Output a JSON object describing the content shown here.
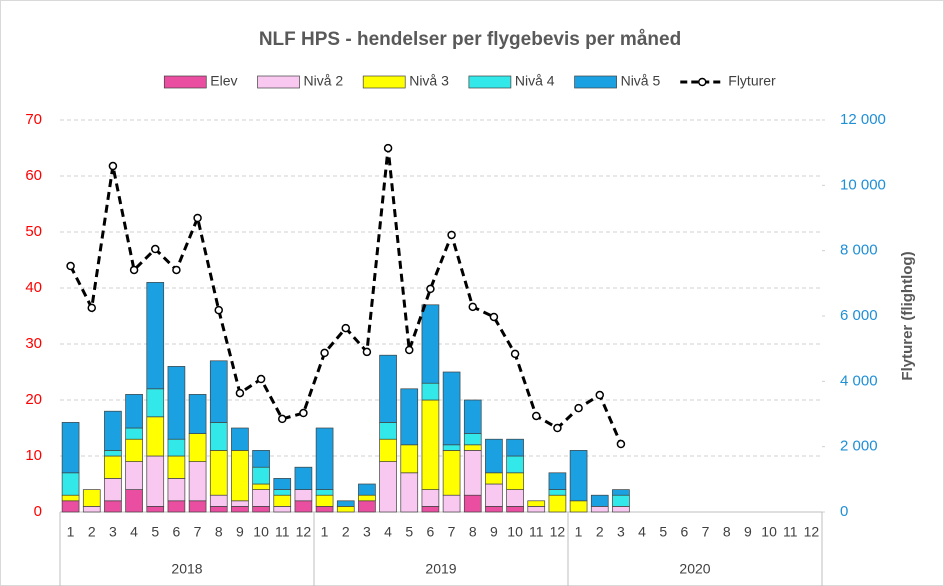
{
  "chart_data": {
    "type": "bar",
    "title": "NLF HPS - hendelser per flygebevis per måned",
    "y2_label": "Flyturer (flightlog)",
    "categories": [
      "1",
      "2",
      "3",
      "4",
      "5",
      "6",
      "7",
      "8",
      "9",
      "10",
      "11",
      "12",
      "1",
      "2",
      "3",
      "4",
      "5",
      "6",
      "7",
      "8",
      "9",
      "10",
      "11",
      "12",
      "1",
      "2",
      "3",
      "4",
      "5",
      "6",
      "7",
      "8",
      "9",
      "10",
      "11",
      "12"
    ],
    "year_groups": [
      "2018",
      "2019",
      "2020"
    ],
    "stacked": true,
    "grid": true,
    "legend": "top",
    "ylim": [
      0,
      70
    ],
    "yticks": [
      0,
      10,
      20,
      30,
      40,
      50,
      60,
      70
    ],
    "y2lim": [
      0,
      12000
    ],
    "y2ticks": [
      0,
      {
        "value": 2000,
        "label": "2 000"
      },
      {
        "value": 4000,
        "label": "4 000"
      },
      {
        "value": 6000,
        "label": "6 000"
      },
      {
        "value": 8000,
        "label": "8 000"
      },
      {
        "value": 10000,
        "label": "10 000"
      },
      {
        "value": 12000,
        "label": "12 000"
      }
    ],
    "series": [
      {
        "name": "Elev",
        "type": "bar",
        "color": "#e94ea0",
        "values": [
          2,
          0,
          2,
          4,
          1,
          2,
          2,
          1,
          1,
          1,
          0,
          2,
          1,
          0,
          2,
          0,
          0,
          1,
          0,
          3,
          1,
          1,
          0,
          0,
          0,
          0,
          0,
          null,
          null,
          null,
          null,
          null,
          null,
          null,
          null,
          null
        ]
      },
      {
        "name": "Nivå 2",
        "type": "bar",
        "color": "#f9c8f0",
        "values": [
          0,
          1,
          4,
          5,
          9,
          4,
          7,
          2,
          1,
          3,
          1,
          2,
          0,
          0,
          0,
          9,
          7,
          3,
          3,
          8,
          4,
          3,
          1,
          0,
          0,
          1,
          1,
          null,
          null,
          null,
          null,
          null,
          null,
          null,
          null,
          null
        ]
      },
      {
        "name": "Nivå 3",
        "type": "bar",
        "color": "#ffff00",
        "values": [
          1,
          3,
          4,
          4,
          7,
          4,
          5,
          8,
          9,
          1,
          2,
          0,
          2,
          1,
          1,
          4,
          5,
          16,
          8,
          1,
          2,
          3,
          1,
          3,
          2,
          0,
          0,
          null,
          null,
          null,
          null,
          null,
          null,
          null,
          null,
          null
        ]
      },
      {
        "name": "Nivå 4",
        "type": "bar",
        "color": "#33e8e8",
        "values": [
          4,
          0,
          1,
          2,
          5,
          3,
          0,
          5,
          0,
          3,
          1,
          0,
          1,
          0,
          0,
          3,
          0,
          3,
          1,
          2,
          0,
          3,
          0,
          1,
          0,
          0,
          2,
          null,
          null,
          null,
          null,
          null,
          null,
          null,
          null,
          null
        ]
      },
      {
        "name": "Nivå 5",
        "type": "bar",
        "color": "#1ba1e2",
        "values": [
          9,
          0,
          7,
          6,
          19,
          13,
          7,
          11,
          4,
          3,
          2,
          4,
          11,
          1,
          2,
          12,
          10,
          14,
          13,
          6,
          6,
          3,
          0,
          3,
          9,
          2,
          1,
          null,
          null,
          null,
          null,
          null,
          null,
          null,
          null,
          null
        ]
      },
      {
        "name": "Flyturer",
        "type": "line",
        "axis": "y2",
        "color": "#000000",
        "values": [
          7530,
          6250,
          10590,
          7410,
          8050,
          7410,
          9000,
          6180,
          3640,
          4070,
          2850,
          3030,
          4870,
          5630,
          4900,
          11140,
          4960,
          6830,
          8480,
          6280,
          5970,
          4840,
          2940,
          2570,
          3180,
          3580,
          2080,
          null,
          null,
          null,
          null,
          null,
          null,
          null,
          null,
          null
        ]
      }
    ]
  }
}
